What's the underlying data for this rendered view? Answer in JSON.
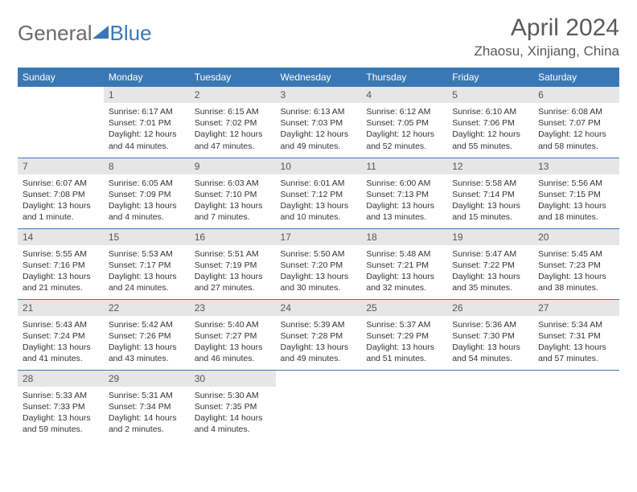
{
  "logo": {
    "text1": "General",
    "text2": "Blue"
  },
  "title": "April 2024",
  "location": "Zhaosu, Xinjiang, China",
  "colors": {
    "header_bg": "#3a78b5",
    "daynum_bg": "#e6e6e6",
    "text": "#333333",
    "title": "#5a5a5a"
  },
  "week_headers": [
    "Sunday",
    "Monday",
    "Tuesday",
    "Wednesday",
    "Thursday",
    "Friday",
    "Saturday"
  ],
  "weeks": [
    [
      null,
      {
        "d": "1",
        "sr": "6:17 AM",
        "ss": "7:01 PM",
        "dl": "12 hours and 44 minutes."
      },
      {
        "d": "2",
        "sr": "6:15 AM",
        "ss": "7:02 PM",
        "dl": "12 hours and 47 minutes."
      },
      {
        "d": "3",
        "sr": "6:13 AM",
        "ss": "7:03 PM",
        "dl": "12 hours and 49 minutes."
      },
      {
        "d": "4",
        "sr": "6:12 AM",
        "ss": "7:05 PM",
        "dl": "12 hours and 52 minutes."
      },
      {
        "d": "5",
        "sr": "6:10 AM",
        "ss": "7:06 PM",
        "dl": "12 hours and 55 minutes."
      },
      {
        "d": "6",
        "sr": "6:08 AM",
        "ss": "7:07 PM",
        "dl": "12 hours and 58 minutes."
      }
    ],
    [
      {
        "d": "7",
        "sr": "6:07 AM",
        "ss": "7:08 PM",
        "dl": "13 hours and 1 minute."
      },
      {
        "d": "8",
        "sr": "6:05 AM",
        "ss": "7:09 PM",
        "dl": "13 hours and 4 minutes."
      },
      {
        "d": "9",
        "sr": "6:03 AM",
        "ss": "7:10 PM",
        "dl": "13 hours and 7 minutes."
      },
      {
        "d": "10",
        "sr": "6:01 AM",
        "ss": "7:12 PM",
        "dl": "13 hours and 10 minutes."
      },
      {
        "d": "11",
        "sr": "6:00 AM",
        "ss": "7:13 PM",
        "dl": "13 hours and 13 minutes."
      },
      {
        "d": "12",
        "sr": "5:58 AM",
        "ss": "7:14 PM",
        "dl": "13 hours and 15 minutes."
      },
      {
        "d": "13",
        "sr": "5:56 AM",
        "ss": "7:15 PM",
        "dl": "13 hours and 18 minutes."
      }
    ],
    [
      {
        "d": "14",
        "sr": "5:55 AM",
        "ss": "7:16 PM",
        "dl": "13 hours and 21 minutes."
      },
      {
        "d": "15",
        "sr": "5:53 AM",
        "ss": "7:17 PM",
        "dl": "13 hours and 24 minutes."
      },
      {
        "d": "16",
        "sr": "5:51 AM",
        "ss": "7:19 PM",
        "dl": "13 hours and 27 minutes."
      },
      {
        "d": "17",
        "sr": "5:50 AM",
        "ss": "7:20 PM",
        "dl": "13 hours and 30 minutes."
      },
      {
        "d": "18",
        "sr": "5:48 AM",
        "ss": "7:21 PM",
        "dl": "13 hours and 32 minutes."
      },
      {
        "d": "19",
        "sr": "5:47 AM",
        "ss": "7:22 PM",
        "dl": "13 hours and 35 minutes."
      },
      {
        "d": "20",
        "sr": "5:45 AM",
        "ss": "7:23 PM",
        "dl": "13 hours and 38 minutes."
      }
    ],
    [
      {
        "d": "21",
        "sr": "5:43 AM",
        "ss": "7:24 PM",
        "dl": "13 hours and 41 minutes."
      },
      {
        "d": "22",
        "sr": "5:42 AM",
        "ss": "7:26 PM",
        "dl": "13 hours and 43 minutes."
      },
      {
        "d": "23",
        "sr": "5:40 AM",
        "ss": "7:27 PM",
        "dl": "13 hours and 46 minutes."
      },
      {
        "d": "24",
        "sr": "5:39 AM",
        "ss": "7:28 PM",
        "dl": "13 hours and 49 minutes."
      },
      {
        "d": "25",
        "sr": "5:37 AM",
        "ss": "7:29 PM",
        "dl": "13 hours and 51 minutes."
      },
      {
        "d": "26",
        "sr": "5:36 AM",
        "ss": "7:30 PM",
        "dl": "13 hours and 54 minutes."
      },
      {
        "d": "27",
        "sr": "5:34 AM",
        "ss": "7:31 PM",
        "dl": "13 hours and 57 minutes."
      }
    ],
    [
      {
        "d": "28",
        "sr": "5:33 AM",
        "ss": "7:33 PM",
        "dl": "13 hours and 59 minutes."
      },
      {
        "d": "29",
        "sr": "5:31 AM",
        "ss": "7:34 PM",
        "dl": "14 hours and 2 minutes."
      },
      {
        "d": "30",
        "sr": "5:30 AM",
        "ss": "7:35 PM",
        "dl": "14 hours and 4 minutes."
      },
      null,
      null,
      null,
      null
    ]
  ]
}
